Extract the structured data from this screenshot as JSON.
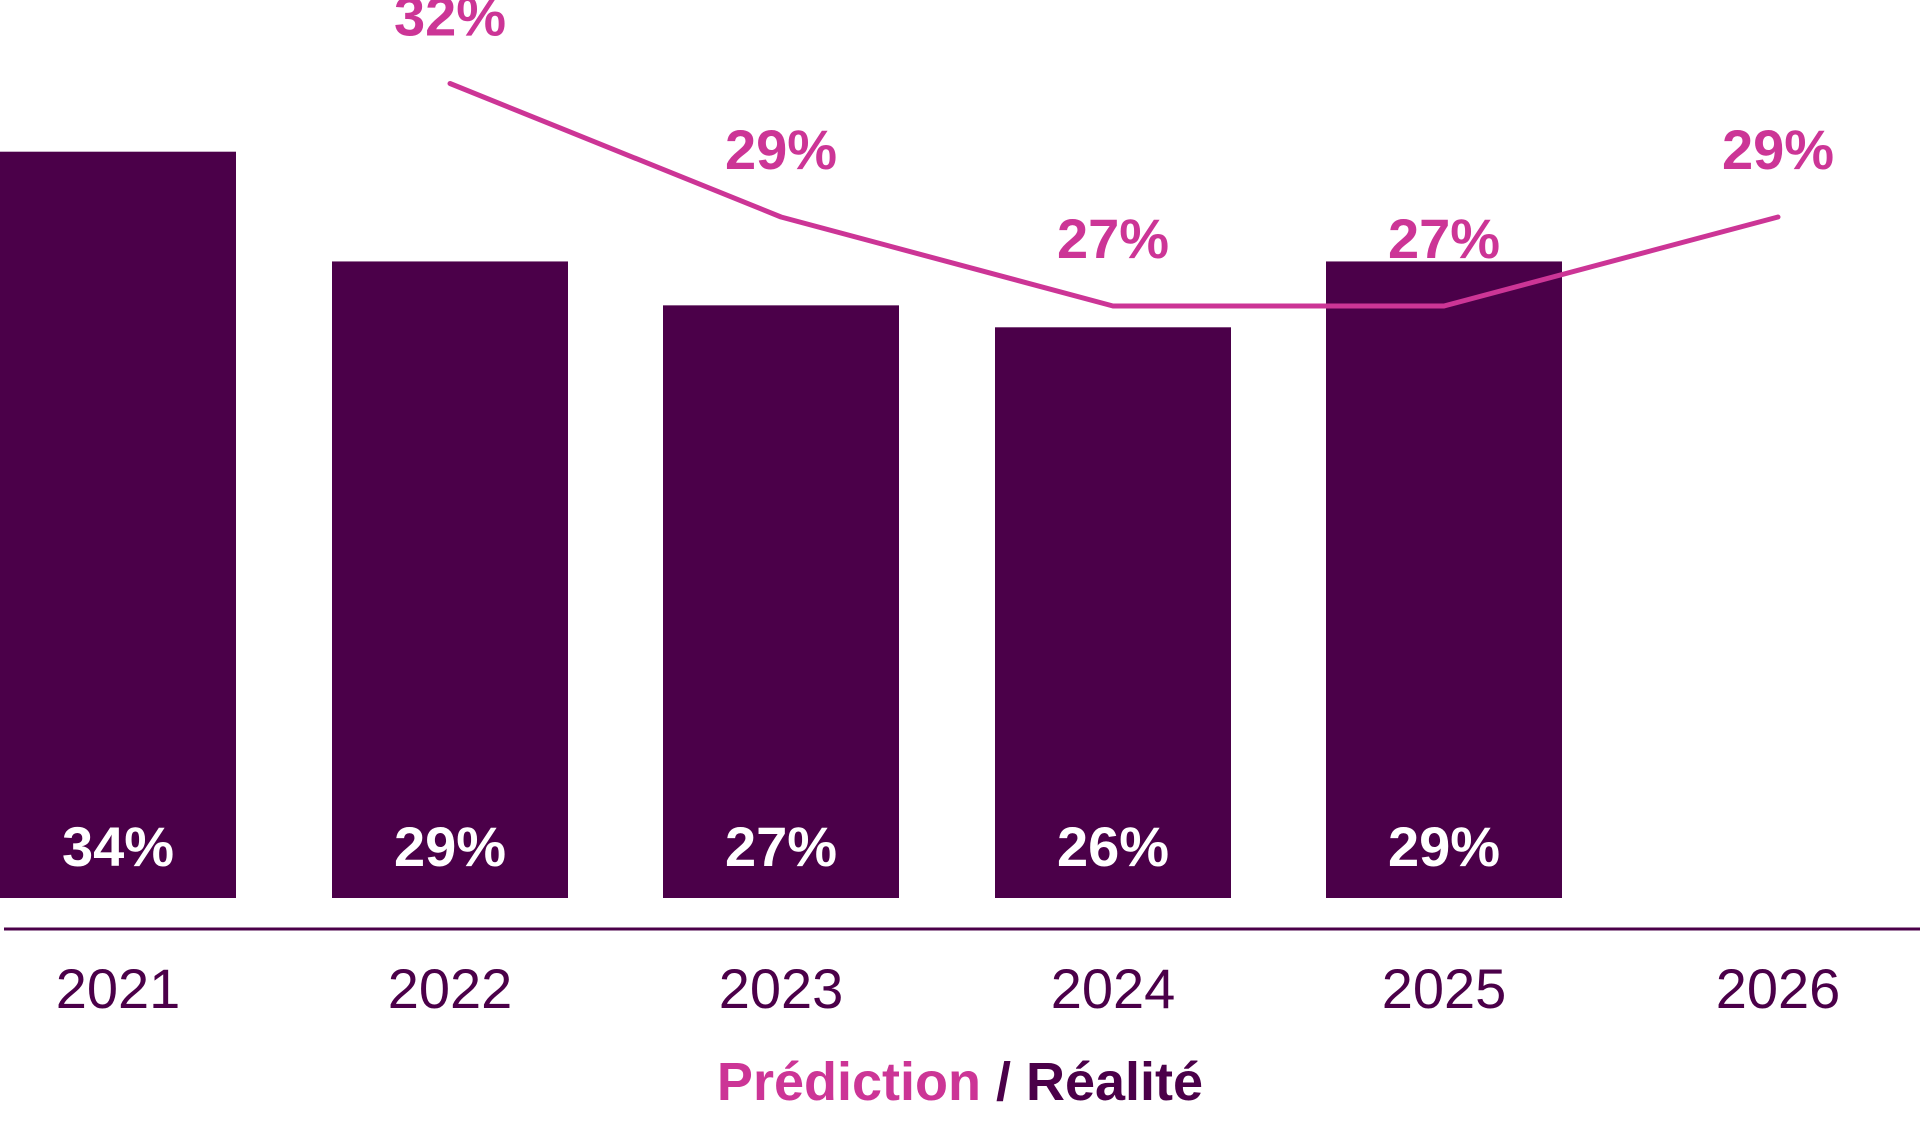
{
  "colors": {
    "bar": "#4b0049",
    "prediction": "#cc3596",
    "axis": "#4b0049",
    "bar_label": "#ffffff"
  },
  "legend": {
    "prediction_label": "Prédiction",
    "separator": " / ",
    "reality_label": "Réalité"
  },
  "chart_data": {
    "type": "bar",
    "categories": [
      "2021",
      "2022",
      "2023",
      "2024",
      "2025",
      "2026"
    ],
    "series": [
      {
        "name": "Réalité",
        "type": "bar",
        "values": [
          34,
          29,
          27,
          26,
          29,
          null
        ],
        "labels": [
          "34%",
          "29%",
          "27%",
          "26%",
          "29%",
          ""
        ]
      },
      {
        "name": "Prédiction",
        "type": "line",
        "values": [
          null,
          32,
          29,
          27,
          27,
          29
        ],
        "labels": [
          "",
          "32%",
          "29%",
          "27%",
          "27%",
          "29%"
        ]
      }
    ],
    "unit": "%",
    "legend_position": "bottom-center",
    "grid": false
  }
}
